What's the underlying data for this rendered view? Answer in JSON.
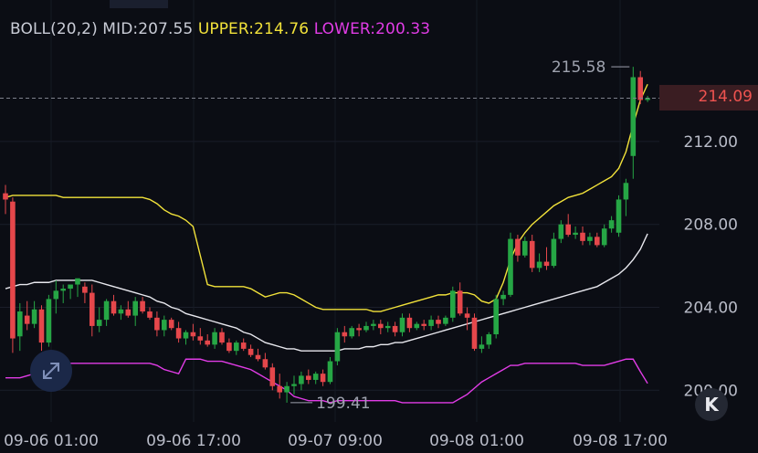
{
  "indicator": {
    "main": "BOLL(20,2) MID:207.55",
    "upper": "UPPER:214.76",
    "lower": "LOWER:200.33"
  },
  "last_price": "214.09",
  "icons": {
    "fit": "fullscreen-arrows-icon",
    "k": "k-chevron-icon"
  },
  "k_label": "K",
  "colors": {
    "up": "#26a645",
    "down": "#e5474b",
    "upper": "#f2e23a",
    "lower": "#e13ce6",
    "mid": "#e8e8ee"
  },
  "chart_data": {
    "type": "candlestick",
    "y_ticks": [
      "212.00",
      "208.00",
      "204.00",
      "200.00"
    ],
    "x_ticks": [
      "09-06 01:00",
      "09-06 17:00",
      "09-07 09:00",
      "09-08 01:00",
      "09-08 17:00"
    ],
    "ylim": [
      199.0,
      216.4
    ],
    "high_annotation": "215.58",
    "low_annotation": "199.41",
    "grid": true,
    "candles": [
      [
        209.5,
        209.9,
        208.5,
        209.2
      ],
      [
        209.1,
        209.3,
        201.8,
        202.5
      ],
      [
        202.6,
        204.2,
        201.9,
        203.8
      ],
      [
        203.6,
        204.3,
        202.9,
        203.2
      ],
      [
        203.2,
        204.3,
        203.0,
        203.9
      ],
      [
        203.9,
        204.1,
        201.9,
        202.3
      ],
      [
        202.3,
        204.6,
        202.1,
        204.4
      ],
      [
        204.4,
        205.3,
        203.7,
        204.8
      ],
      [
        204.8,
        205.1,
        204.2,
        204.9
      ],
      [
        204.9,
        205.0,
        204.4,
        205.1
      ],
      [
        205.1,
        205.3,
        204.5,
        205.4
      ],
      [
        205.0,
        205.2,
        204.2,
        204.7
      ],
      [
        204.7,
        205.1,
        202.6,
        203.1
      ],
      [
        203.1,
        204.0,
        202.8,
        203.4
      ],
      [
        203.4,
        204.4,
        203.1,
        204.3
      ],
      [
        204.3,
        204.6,
        203.6,
        203.7
      ],
      [
        203.7,
        204.1,
        203.4,
        203.9
      ],
      [
        203.9,
        204.3,
        203.5,
        203.6
      ],
      [
        203.6,
        204.5,
        203.1,
        204.3
      ],
      [
        204.3,
        204.5,
        203.7,
        203.8
      ],
      [
        203.8,
        204.0,
        203.4,
        203.5
      ],
      [
        203.5,
        203.8,
        202.6,
        202.9
      ],
      [
        202.9,
        203.6,
        202.6,
        203.4
      ],
      [
        203.4,
        203.5,
        202.9,
        203.0
      ],
      [
        203.0,
        203.3,
        202.3,
        202.5
      ],
      [
        202.5,
        202.9,
        202.2,
        202.8
      ],
      [
        202.8,
        203.2,
        202.4,
        202.6
      ],
      [
        202.6,
        203.0,
        202.2,
        202.4
      ],
      [
        202.4,
        202.7,
        202.1,
        202.2
      ],
      [
        202.2,
        203.0,
        202.0,
        202.8
      ],
      [
        202.8,
        203.0,
        202.2,
        202.3
      ],
      [
        202.3,
        202.5,
        201.8,
        201.9
      ],
      [
        201.9,
        202.4,
        201.7,
        202.3
      ],
      [
        202.3,
        202.5,
        201.9,
        202.0
      ],
      [
        202.0,
        202.2,
        201.6,
        201.7
      ],
      [
        201.7,
        202.0,
        201.4,
        201.5
      ],
      [
        201.5,
        201.8,
        201.0,
        201.1
      ],
      [
        201.1,
        201.3,
        200.0,
        200.2
      ],
      [
        200.2,
        200.8,
        199.6,
        199.9
      ],
      [
        199.9,
        200.4,
        199.4,
        200.2
      ],
      [
        200.2,
        200.7,
        199.8,
        200.3
      ],
      [
        200.3,
        200.9,
        200.0,
        200.7
      ],
      [
        200.7,
        201.0,
        200.3,
        200.5
      ],
      [
        200.5,
        200.9,
        200.3,
        200.8
      ],
      [
        200.8,
        201.0,
        200.2,
        200.4
      ],
      [
        200.4,
        201.6,
        200.3,
        201.4
      ],
      [
        201.4,
        203.0,
        201.2,
        202.8
      ],
      [
        202.8,
        203.1,
        202.3,
        202.6
      ],
      [
        202.6,
        203.1,
        202.5,
        203.0
      ],
      [
        203.0,
        203.2,
        202.6,
        202.9
      ],
      [
        202.9,
        203.3,
        202.8,
        203.1
      ],
      [
        203.1,
        203.4,
        202.9,
        203.2
      ],
      [
        203.2,
        203.4,
        202.7,
        203.0
      ],
      [
        203.0,
        203.3,
        202.8,
        203.1
      ],
      [
        203.1,
        203.3,
        202.6,
        202.8
      ],
      [
        202.8,
        203.7,
        202.6,
        203.5
      ],
      [
        203.5,
        203.7,
        202.8,
        203.0
      ],
      [
        203.0,
        203.3,
        202.9,
        203.2
      ],
      [
        203.2,
        203.4,
        202.9,
        203.1
      ],
      [
        203.1,
        203.6,
        202.9,
        203.4
      ],
      [
        203.4,
        203.6,
        203.0,
        203.2
      ],
      [
        203.2,
        203.6,
        203.1,
        203.5
      ],
      [
        203.5,
        205.0,
        203.3,
        204.8
      ],
      [
        204.8,
        205.2,
        203.6,
        203.7
      ],
      [
        203.7,
        204.0,
        202.9,
        203.5
      ],
      [
        203.5,
        203.7,
        201.9,
        202.0
      ],
      [
        202.0,
        202.6,
        201.8,
        202.2
      ],
      [
        202.2,
        202.8,
        202.0,
        202.7
      ],
      [
        202.7,
        204.6,
        202.5,
        204.4
      ],
      [
        204.4,
        204.8,
        204.1,
        204.6
      ],
      [
        204.6,
        207.6,
        204.5,
        207.3
      ],
      [
        207.3,
        207.5,
        206.2,
        206.5
      ],
      [
        206.5,
        207.4,
        206.4,
        207.2
      ],
      [
        207.2,
        207.5,
        205.7,
        205.9
      ],
      [
        205.9,
        206.6,
        205.7,
        206.2
      ],
      [
        206.2,
        206.9,
        205.8,
        206.0
      ],
      [
        206.0,
        207.6,
        205.9,
        207.3
      ],
      [
        207.3,
        208.2,
        207.1,
        208.0
      ],
      [
        208.0,
        208.5,
        207.4,
        207.5
      ],
      [
        207.5,
        207.9,
        207.3,
        207.6
      ],
      [
        207.6,
        207.9,
        207.0,
        207.2
      ],
      [
        207.2,
        207.6,
        207.0,
        207.4
      ],
      [
        207.4,
        207.6,
        206.9,
        207.0
      ],
      [
        207.0,
        208.0,
        206.9,
        207.8
      ],
      [
        207.8,
        208.4,
        207.6,
        208.2
      ],
      [
        207.6,
        209.4,
        207.4,
        209.2
      ],
      [
        209.2,
        210.2,
        208.4,
        210.0
      ],
      [
        211.3,
        215.6,
        210.2,
        215.1
      ],
      [
        215.1,
        215.4,
        213.8,
        214.0
      ],
      [
        214.0,
        214.2,
        213.9,
        214.09
      ]
    ],
    "series": [
      {
        "name": "UPPER",
        "values": [
          209.3,
          209.4,
          209.4,
          209.4,
          209.4,
          209.4,
          209.4,
          209.4,
          209.3,
          209.3,
          209.3,
          209.3,
          209.3,
          209.3,
          209.3,
          209.3,
          209.3,
          209.3,
          209.3,
          209.3,
          209.2,
          209.0,
          208.7,
          208.5,
          208.4,
          208.2,
          207.9,
          206.5,
          205.1,
          205.0,
          205.0,
          205.0,
          205.0,
          205.0,
          204.9,
          204.7,
          204.5,
          204.6,
          204.7,
          204.7,
          204.6,
          204.4,
          204.2,
          204.0,
          203.9,
          203.9,
          203.9,
          203.9,
          203.9,
          203.9,
          203.9,
          203.8,
          203.8,
          203.9,
          204.0,
          204.1,
          204.2,
          204.3,
          204.4,
          204.5,
          204.6,
          204.6,
          204.7,
          204.7,
          204.7,
          204.6,
          204.3,
          204.2,
          204.4,
          205.2,
          206.3,
          207.1,
          207.6,
          208.0,
          208.3,
          208.6,
          208.9,
          209.1,
          209.3,
          209.4,
          209.5,
          209.7,
          209.9,
          210.1,
          210.3,
          210.7,
          211.5,
          212.8,
          214.0,
          214.76
        ]
      },
      {
        "name": "MID",
        "values": [
          204.9,
          205.0,
          205.1,
          205.1,
          205.2,
          205.2,
          205.2,
          205.3,
          205.3,
          205.3,
          205.3,
          205.3,
          205.3,
          205.2,
          205.1,
          205.0,
          204.9,
          204.8,
          204.7,
          204.6,
          204.5,
          204.3,
          204.2,
          204.0,
          203.9,
          203.7,
          203.6,
          203.5,
          203.4,
          203.3,
          203.2,
          203.1,
          203.0,
          202.8,
          202.7,
          202.5,
          202.3,
          202.2,
          202.1,
          202.0,
          202.0,
          201.9,
          201.9,
          201.9,
          201.9,
          201.9,
          201.9,
          202.0,
          202.0,
          202.0,
          202.1,
          202.1,
          202.2,
          202.2,
          202.3,
          202.3,
          202.4,
          202.5,
          202.6,
          202.7,
          202.8,
          202.9,
          203.0,
          203.1,
          203.2,
          203.3,
          203.4,
          203.5,
          203.6,
          203.7,
          203.8,
          203.9,
          204.0,
          204.1,
          204.2,
          204.3,
          204.4,
          204.5,
          204.6,
          204.7,
          204.8,
          204.9,
          205.0,
          205.2,
          205.4,
          205.6,
          205.9,
          206.3,
          206.8,
          207.55
        ]
      },
      {
        "name": "LOWER",
        "values": [
          200.6,
          200.6,
          200.6,
          200.7,
          200.8,
          200.9,
          201.0,
          201.1,
          201.3,
          201.3,
          201.3,
          201.3,
          201.3,
          201.3,
          201.3,
          201.3,
          201.3,
          201.3,
          201.3,
          201.3,
          201.3,
          201.2,
          201.0,
          200.9,
          200.8,
          201.5,
          201.5,
          201.5,
          201.4,
          201.4,
          201.4,
          201.3,
          201.2,
          201.1,
          201.0,
          200.8,
          200.6,
          200.4,
          200.2,
          200.0,
          199.7,
          199.6,
          199.5,
          199.5,
          199.5,
          199.4,
          199.5,
          199.5,
          199.5,
          199.5,
          199.5,
          199.5,
          199.5,
          199.5,
          199.5,
          199.4,
          199.4,
          199.4,
          199.4,
          199.4,
          199.4,
          199.4,
          199.4,
          199.6,
          199.8,
          200.1,
          200.4,
          200.6,
          200.8,
          201.0,
          201.2,
          201.2,
          201.3,
          201.3,
          201.3,
          201.3,
          201.3,
          201.3,
          201.3,
          201.3,
          201.2,
          201.2,
          201.2,
          201.2,
          201.3,
          201.4,
          201.5,
          201.5,
          200.9,
          200.33
        ]
      }
    ]
  }
}
